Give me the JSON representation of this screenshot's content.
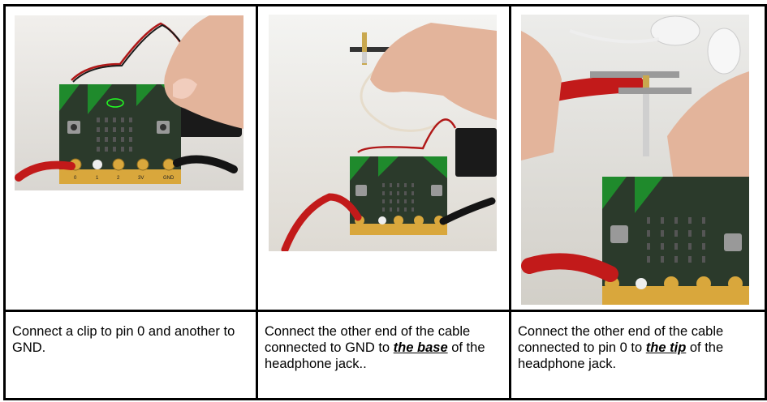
{
  "steps": [
    {
      "photo_icon": "microbit-with-two-clips-photo",
      "caption_before": "Connect a clip to pin 0 and another to GND.",
      "caption_emph": "",
      "caption_after": ""
    },
    {
      "photo_icon": "headphone-jack-base-clip-photo",
      "caption_before": "Connect the other end of the cable connected to GND to ",
      "caption_emph": "the base",
      "caption_after": " of the headphone jack.."
    },
    {
      "photo_icon": "headphone-jack-tip-clip-photo",
      "caption_before": "Connect the other end of the cable connected to pin 0 to ",
      "caption_emph": "the tip",
      "caption_after": " of the headphone jack."
    }
  ],
  "board_labels": {
    "pin0": "0",
    "pin1": "1",
    "pin2": "2",
    "pin3v": "3V",
    "gnd": "GND"
  }
}
